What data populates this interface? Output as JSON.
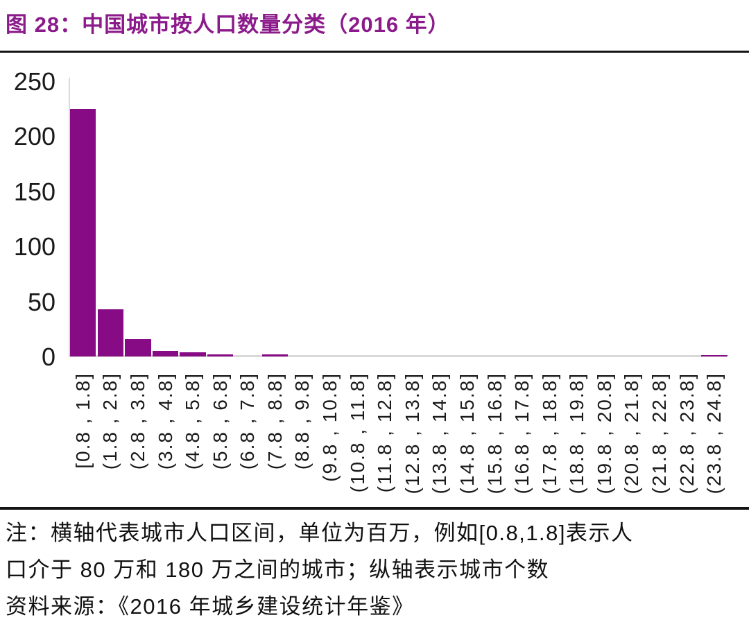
{
  "figure": {
    "title": "图 28：中国城市按人口数量分类（2016 年）"
  },
  "colors": {
    "title": "#8B1A8B",
    "bar": "#870B85",
    "axis_line": "#D9D9D9",
    "rule": "#141414",
    "tick_text": "#1A1A1A",
    "note_text": "#111111"
  },
  "chart_data": {
    "type": "bar",
    "title": "中国城市按人口数量分类（2016 年）",
    "categories": [
      "[0.8 , 1.8]",
      "(1.8 , 2.8]",
      "(2.8 , 3.8]",
      "(3.8 , 4.8]",
      "(4.8 , 5.8]",
      "(5.8 , 6.8]",
      "(6.8 , 7.8]",
      "(7.8 , 8.8]",
      "(8.8 , 9.8]",
      "(9.8 , 10.8]",
      "(10.8 , 11.8]",
      "(11.8 , 12.8]",
      "(12.8 , 13.8]",
      "(13.8 , 14.8]",
      "(14.8 , 15.8]",
      "(15.8 , 16.8]",
      "(16.8 , 17.8]",
      "(17.8 , 18.8]",
      "(18.8 , 19.8]",
      "(19.8 , 20.8]",
      "(20.8 , 21.8]",
      "(21.8 , 22.8]",
      "(22.8 , 23.8]",
      "(23.8 , 24.8]"
    ],
    "values": [
      225,
      43,
      16,
      5,
      4,
      2,
      0,
      2,
      0,
      0,
      0,
      0,
      0,
      0,
      0,
      0,
      0,
      0,
      0,
      0,
      0,
      0,
      0,
      1
    ],
    "xlabel": "",
    "ylabel": "",
    "ylim": [
      0,
      250
    ],
    "yticks": [
      0,
      50,
      100,
      150,
      200,
      250
    ],
    "grid": false,
    "legend": false
  },
  "notes": {
    "line1": "注：横轴代表城市人口区间，单位为百万，例如[0.8,1.8]表示人",
    "line2": "口介于 80 万和 180 万之间的城市；纵轴表示城市个数",
    "line3": "资料来源：《2016 年城乡建设统计年鉴》"
  }
}
